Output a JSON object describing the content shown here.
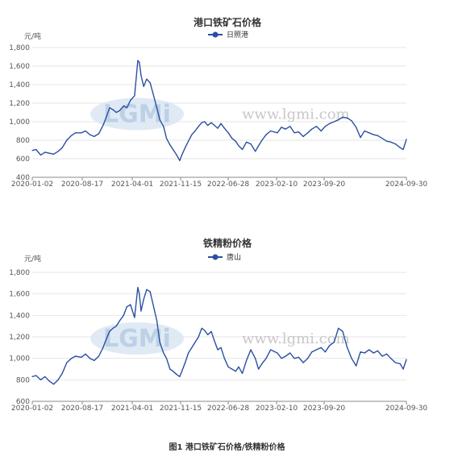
{
  "caption": "图1 港口铁矿石价格/铁精粉价格",
  "watermark": {
    "logo": "LGMi",
    "url": "www.lgmi.com"
  },
  "colors": {
    "series": "#2b4fa0",
    "grid": "#e6e6e6",
    "axis": "#888888"
  },
  "chart_data": [
    {
      "type": "line",
      "title": "港口铁矿石价格",
      "unit": "元/吨",
      "legend": "日照港",
      "legend_position": "top-center",
      "ylim": [
        400,
        1800
      ],
      "yticks": [
        400,
        600,
        800,
        1000,
        1200,
        1400,
        1600,
        1800
      ],
      "ytick_labels": [
        "400",
        "600",
        "800",
        "1,000",
        "1,200",
        "1,400",
        "1,600",
        "1,800"
      ],
      "xtick_labels": [
        "2020-01-02",
        "2020-08-17",
        "2021-04-01",
        "2021-11-15",
        "2022-06-28",
        "2023-02-10",
        "2023-09-20",
        "2024-09-30"
      ],
      "grid": true,
      "series": [
        {
          "name": "日照港",
          "x": [
            "2020-01-02",
            "2020-01-20",
            "2020-02-10",
            "2020-03-01",
            "2020-03-20",
            "2020-04-10",
            "2020-05-01",
            "2020-05-20",
            "2020-06-10",
            "2020-07-01",
            "2020-07-20",
            "2020-08-17",
            "2020-09-05",
            "2020-09-25",
            "2020-10-15",
            "2020-11-05",
            "2020-11-25",
            "2020-12-10",
            "2020-12-25",
            "2021-01-10",
            "2021-01-25",
            "2021-02-10",
            "2021-02-28",
            "2021-03-15",
            "2021-04-01",
            "2021-04-20",
            "2021-05-05",
            "2021-05-12",
            "2021-05-20",
            "2021-06-01",
            "2021-06-15",
            "2021-07-01",
            "2021-07-15",
            "2021-08-01",
            "2021-08-15",
            "2021-09-01",
            "2021-09-15",
            "2021-10-01",
            "2021-10-15",
            "2021-11-01",
            "2021-11-15",
            "2021-11-25",
            "2021-12-10",
            "2021-12-25",
            "2022-01-10",
            "2022-01-25",
            "2022-02-10",
            "2022-02-25",
            "2022-03-10",
            "2022-03-25",
            "2022-04-10",
            "2022-04-25",
            "2022-05-10",
            "2022-05-25",
            "2022-06-10",
            "2022-06-28",
            "2022-07-15",
            "2022-08-01",
            "2022-08-15",
            "2022-09-01",
            "2022-09-20",
            "2022-10-10",
            "2022-10-31",
            "2022-11-15",
            "2022-12-01",
            "2022-12-20",
            "2023-01-10",
            "2023-02-10",
            "2023-03-01",
            "2023-03-20",
            "2023-04-10",
            "2023-04-30",
            "2023-05-20",
            "2023-06-10",
            "2023-07-01",
            "2023-07-20",
            "2023-08-10",
            "2023-09-01",
            "2023-09-20",
            "2023-10-10",
            "2023-10-31",
            "2023-11-20",
            "2023-12-10",
            "2023-12-31",
            "2024-01-20",
            "2024-02-10",
            "2024-03-01",
            "2024-03-20",
            "2024-04-10",
            "2024-05-01",
            "2024-05-20",
            "2024-06-10",
            "2024-07-01",
            "2024-07-20",
            "2024-08-10",
            "2024-09-01",
            "2024-09-15",
            "2024-09-30"
          ],
          "y": [
            690,
            700,
            640,
            670,
            660,
            650,
            680,
            720,
            800,
            850,
            880,
            880,
            900,
            860,
            840,
            870,
            960,
            1050,
            1150,
            1130,
            1100,
            1120,
            1170,
            1150,
            1230,
            1280,
            1660,
            1640,
            1500,
            1380,
            1460,
            1420,
            1300,
            1150,
            1020,
            950,
            820,
            750,
            700,
            640,
            580,
            640,
            720,
            790,
            860,
            900,
            950,
            990,
            1000,
            960,
            990,
            960,
            930,
            980,
            930,
            880,
            820,
            790,
            740,
            700,
            780,
            760,
            680,
            740,
            800,
            860,
            900,
            880,
            940,
            920,
            950,
            880,
            890,
            840,
            880,
            920,
            950,
            900,
            950,
            980,
            1000,
            1020,
            1050,
            1040,
            1010,
            940,
            830,
            900,
            880,
            860,
            850,
            820,
            790,
            780,
            760,
            720,
            700,
            810
          ]
        }
      ]
    },
    {
      "type": "line",
      "title": "铁精粉价格",
      "unit": "元/吨",
      "legend": "唐山",
      "legend_position": "top-center",
      "ylim": [
        600,
        1800
      ],
      "yticks": [
        600,
        800,
        1000,
        1200,
        1400,
        1600,
        1800
      ],
      "ytick_labels": [
        "600",
        "800",
        "1,000",
        "1,200",
        "1,400",
        "1,600",
        "1,800"
      ],
      "xtick_labels": [
        "2020-01-02",
        "2020-08-17",
        "2021-04-01",
        "2021-11-15",
        "2022-06-28",
        "2023-02-10",
        "2023-09-20",
        "2024-09-30"
      ],
      "grid": true,
      "series": [
        {
          "name": "唐山",
          "x": [
            "2020-01-02",
            "2020-01-20",
            "2020-02-10",
            "2020-03-01",
            "2020-03-20",
            "2020-04-10",
            "2020-05-01",
            "2020-05-20",
            "2020-06-10",
            "2020-07-01",
            "2020-07-20",
            "2020-08-17",
            "2020-09-05",
            "2020-09-25",
            "2020-10-15",
            "2020-11-05",
            "2020-11-25",
            "2020-12-10",
            "2020-12-25",
            "2021-01-10",
            "2021-01-25",
            "2021-02-10",
            "2021-02-28",
            "2021-03-15",
            "2021-04-01",
            "2021-04-20",
            "2021-05-05",
            "2021-05-12",
            "2021-05-20",
            "2021-06-01",
            "2021-06-15",
            "2021-07-01",
            "2021-07-15",
            "2021-08-01",
            "2021-08-15",
            "2021-09-01",
            "2021-09-15",
            "2021-10-01",
            "2021-10-15",
            "2021-11-01",
            "2021-11-15",
            "2021-11-25",
            "2021-12-10",
            "2021-12-25",
            "2022-01-10",
            "2022-01-25",
            "2022-02-10",
            "2022-02-25",
            "2022-03-10",
            "2022-03-25",
            "2022-04-10",
            "2022-04-25",
            "2022-05-10",
            "2022-05-25",
            "2022-06-10",
            "2022-06-28",
            "2022-07-15",
            "2022-08-01",
            "2022-08-15",
            "2022-09-01",
            "2022-09-20",
            "2022-10-10",
            "2022-10-31",
            "2022-11-15",
            "2022-12-01",
            "2022-12-20",
            "2023-01-10",
            "2023-02-10",
            "2023-03-01",
            "2023-03-20",
            "2023-04-10",
            "2023-04-30",
            "2023-05-20",
            "2023-06-10",
            "2023-07-01",
            "2023-07-20",
            "2023-08-10",
            "2023-09-01",
            "2023-09-20",
            "2023-10-10",
            "2023-10-31",
            "2023-11-20",
            "2023-12-10",
            "2023-12-31",
            "2024-01-20",
            "2024-02-10",
            "2024-03-01",
            "2024-03-20",
            "2024-04-10",
            "2024-05-01",
            "2024-05-20",
            "2024-06-10",
            "2024-07-01",
            "2024-07-20",
            "2024-08-10",
            "2024-09-01",
            "2024-09-15",
            "2024-09-30"
          ],
          "y": [
            830,
            840,
            800,
            830,
            790,
            760,
            800,
            860,
            960,
            1000,
            1020,
            1010,
            1040,
            1000,
            980,
            1020,
            1100,
            1180,
            1250,
            1280,
            1300,
            1350,
            1400,
            1480,
            1500,
            1380,
            1660,
            1600,
            1440,
            1550,
            1640,
            1620,
            1500,
            1350,
            1150,
            1050,
            1000,
            900,
            880,
            850,
            830,
            880,
            960,
            1050,
            1100,
            1150,
            1200,
            1280,
            1260,
            1220,
            1250,
            1160,
            1080,
            1100,
            1000,
            920,
            900,
            880,
            920,
            860,
            980,
            1080,
            1000,
            900,
            950,
            1000,
            1080,
            1050,
            1000,
            1020,
            1050,
            1000,
            1010,
            960,
            1000,
            1060,
            1080,
            1100,
            1060,
            1120,
            1150,
            1280,
            1250,
            1100,
            1000,
            930,
            1060,
            1050,
            1080,
            1050,
            1070,
            1020,
            1040,
            1000,
            960,
            950,
            900,
            990
          ]
        }
      ]
    }
  ]
}
